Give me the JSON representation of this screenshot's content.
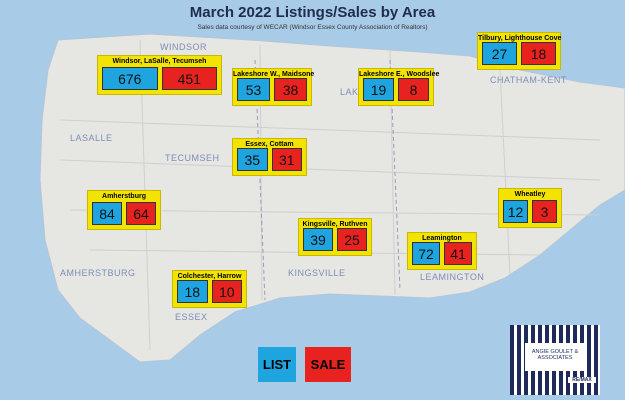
{
  "header": {
    "title": "March 2022 Listings/Sales by Area",
    "subtitle": "Sales data courtesy of WECAR (Windsor Essex County Association of Realtors)"
  },
  "areas": [
    {
      "name": "Windsor, LaSalle, Tecumseh",
      "list": "676",
      "sale": "451"
    },
    {
      "name": "Lakeshore W., Maidsone",
      "list": "53",
      "sale": "38"
    },
    {
      "name": "Lakeshore E., Woodslee",
      "list": "19",
      "sale": "8"
    },
    {
      "name": "Tilbury, Lighthouse Cove",
      "list": "27",
      "sale": "18"
    },
    {
      "name": "Essex, Cottam",
      "list": "35",
      "sale": "31"
    },
    {
      "name": "Amherstburg",
      "list": "84",
      "sale": "64"
    },
    {
      "name": "Wheatley",
      "list": "12",
      "sale": "3"
    },
    {
      "name": "Kingsville, Ruthven",
      "list": "39",
      "sale": "25"
    },
    {
      "name": "Leamington",
      "list": "72",
      "sale": "41"
    },
    {
      "name": "Colchester, Harrow",
      "list": "18",
      "sale": "10"
    }
  ],
  "map_labels": [
    "WINDSOR",
    "LASALLE",
    "TECUMSEH",
    "AMHERSTBURG",
    "ESSEX",
    "KINGSVILLE",
    "LEAMINGTON",
    "CHATHAM-KENT",
    "LAK"
  ],
  "legend": {
    "list": "LIST",
    "sale": "SALE"
  },
  "logo": {
    "name": "ANGIE GOULET & ASSOCIATES",
    "brand": "RE/MAX"
  }
}
